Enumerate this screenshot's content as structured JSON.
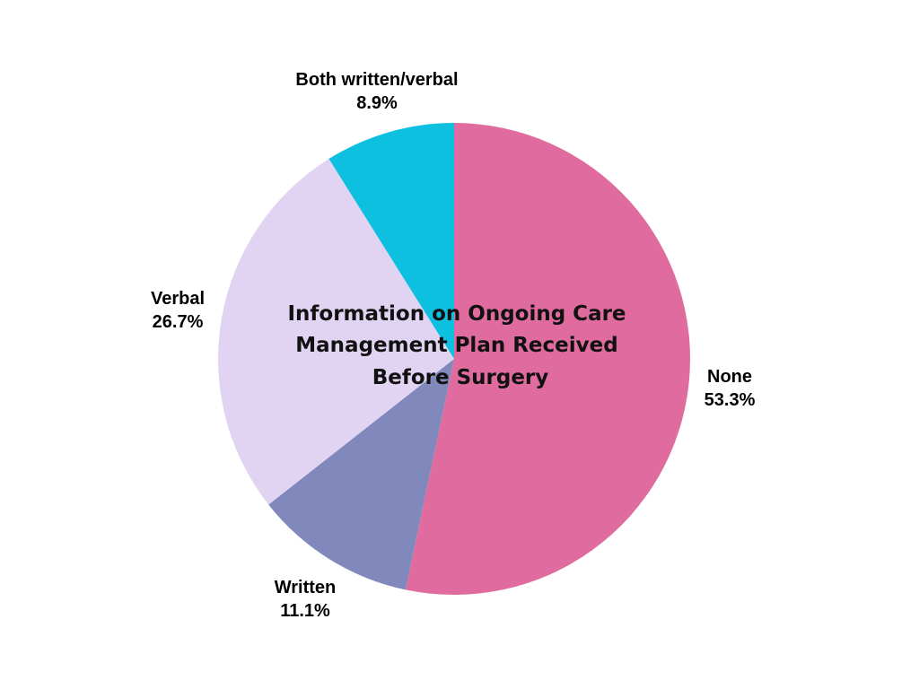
{
  "chart_data": {
    "type": "pie",
    "title": "Information on Ongoing Care Management Plan Received Before Surgery",
    "title_lines": [
      "Information on Ongoing Care",
      "Management Plan Received",
      "Before Surgery"
    ],
    "start": "top",
    "direction": "clockwise",
    "slices": [
      {
        "label": "None",
        "value": 53.3,
        "value_label": "53.3%",
        "color": "#E06C9F"
      },
      {
        "label": "Written",
        "value": 11.1,
        "value_label": "11.1%",
        "color": "#8088BC"
      },
      {
        "label": "Verbal",
        "value": 26.7,
        "value_label": "26.7%",
        "color": "#E1D3F2"
      },
      {
        "label": "Both written/verbal",
        "value": 8.9,
        "value_label": "8.9%",
        "color": "#0DC0E0"
      }
    ]
  }
}
